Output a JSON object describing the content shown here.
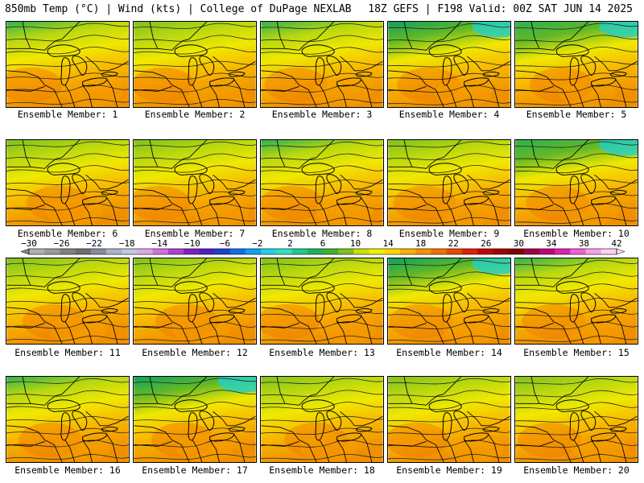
{
  "header": {
    "left": "850mb Temp (°C) | Wind (kts) | College of DuPage NEXLAB",
    "right": "18Z GEFS | F198 Valid: 00Z SAT JUN 14 2025"
  },
  "members": [
    {
      "label": "Ensemble Member: 1"
    },
    {
      "label": "Ensemble Member: 2"
    },
    {
      "label": "Ensemble Member: 3"
    },
    {
      "label": "Ensemble Member: 4"
    },
    {
      "label": "Ensemble Member: 5"
    },
    {
      "label": "Ensemble Member: 6"
    },
    {
      "label": "Ensemble Member: 7"
    },
    {
      "label": "Ensemble Member: 8"
    },
    {
      "label": "Ensemble Member: 9"
    },
    {
      "label": "Ensemble Member: 10"
    },
    {
      "label": "Ensemble Member: 11"
    },
    {
      "label": "Ensemble Member: 12"
    },
    {
      "label": "Ensemble Member: 13"
    },
    {
      "label": "Ensemble Member: 14"
    },
    {
      "label": "Ensemble Member: 15"
    },
    {
      "label": "Ensemble Member: 16"
    },
    {
      "label": "Ensemble Member: 17"
    },
    {
      "label": "Ensemble Member: 18"
    },
    {
      "label": "Ensemble Member: 19"
    },
    {
      "label": "Ensemble Member: 20"
    }
  ],
  "colorbar": {
    "labels": [
      "−30",
      "−26",
      "−22",
      "−18",
      "−14",
      "−10",
      "−6",
      "−2",
      "2",
      "6",
      "10",
      "14",
      "18",
      "22",
      "26",
      "30",
      "34",
      "38",
      "42"
    ],
    "colors": [
      "#b0b0b0",
      "#9a9a9a",
      "#828282",
      "#6e6e6e",
      "#8a8a9e",
      "#a9b4c8",
      "#c0c8e0",
      "#d8a8e8",
      "#d070e0",
      "#b040d0",
      "#8020c0",
      "#5020c0",
      "#2040d0",
      "#1070e8",
      "#10a0f0",
      "#20d0e8",
      "#30e0c0",
      "#20c890",
      "#20b060",
      "#40b030",
      "#80c020",
      "#c8e000",
      "#f0f000",
      "#ffd800",
      "#f8b000",
      "#f89000",
      "#f07000",
      "#e84800",
      "#e02000",
      "#c80000",
      "#a00000",
      "#800000",
      "#a00040",
      "#c00080",
      "#e020b0",
      "#f060d0",
      "#f8a0e8",
      "#ffd0f0"
    ]
  }
}
